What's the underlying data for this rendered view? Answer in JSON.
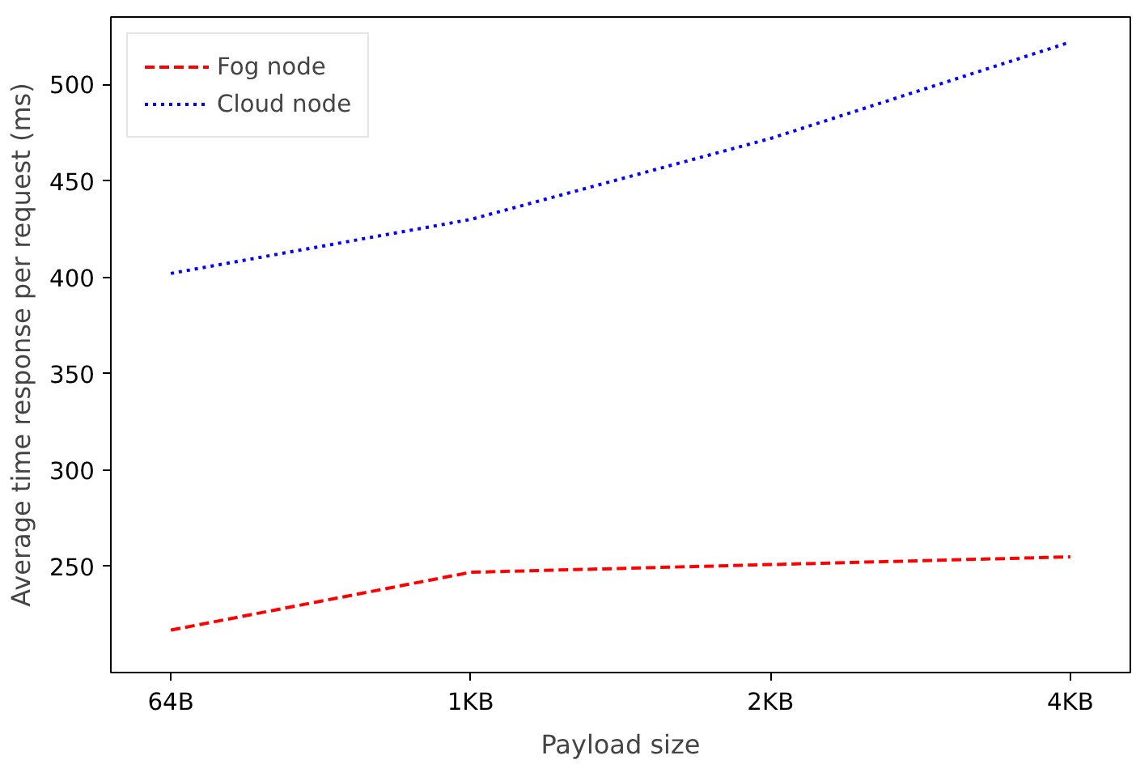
{
  "chart_data": {
    "type": "line",
    "xlabel": "Payload size",
    "ylabel": "Average time response per request (ms)",
    "categories": [
      "64B",
      "1KB",
      "2KB",
      "4KB"
    ],
    "series": [
      {
        "name": "Fog node",
        "color": "#ff0000",
        "line_style": "dashed",
        "values": [
          217,
          247,
          251,
          255
        ]
      },
      {
        "name": "Cloud node",
        "color": "#0000ff",
        "line_style": "dotted",
        "values": [
          402,
          430,
          472,
          522
        ]
      }
    ],
    "ylim": [
      195,
      535
    ],
    "yticks": [
      250,
      300,
      350,
      400,
      450,
      500
    ],
    "grid": false,
    "legend": "top left"
  }
}
